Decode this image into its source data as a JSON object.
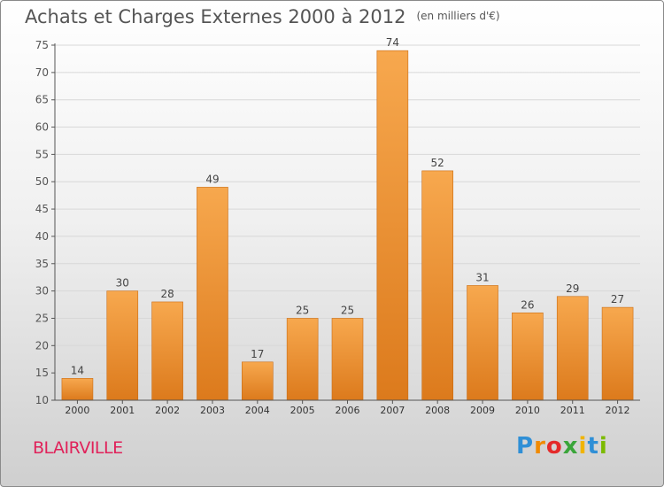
{
  "page": {
    "title": "Achats et Charges Externes 2000 à 2012",
    "unit": "(en milliers d'€)",
    "city": "BLAIRVILLE",
    "logo": [
      "P",
      "r",
      "o",
      "x",
      "i",
      "t",
      "i"
    ]
  },
  "colors": {
    "bar_light": "#f7a84e",
    "bar_dark": "#dc7a1c",
    "axis": "#555555",
    "grid": "#d8d8d8",
    "city": "#e0225a"
  },
  "chart_data": {
    "type": "bar",
    "title": "Achats et Charges Externes 2000 à 2012",
    "xlabel": "",
    "ylabel": "",
    "categories": [
      "2000",
      "2001",
      "2002",
      "2003",
      "2004",
      "2005",
      "2006",
      "2007",
      "2008",
      "2009",
      "2010",
      "2011",
      "2012"
    ],
    "values": [
      14,
      30,
      28,
      49,
      17,
      25,
      25,
      74,
      52,
      31,
      26,
      29,
      27
    ],
    "ylim": [
      10,
      75
    ],
    "yticks": [
      10,
      15,
      20,
      25,
      30,
      35,
      40,
      45,
      50,
      55,
      60,
      65,
      70,
      75
    ],
    "grid": true
  }
}
